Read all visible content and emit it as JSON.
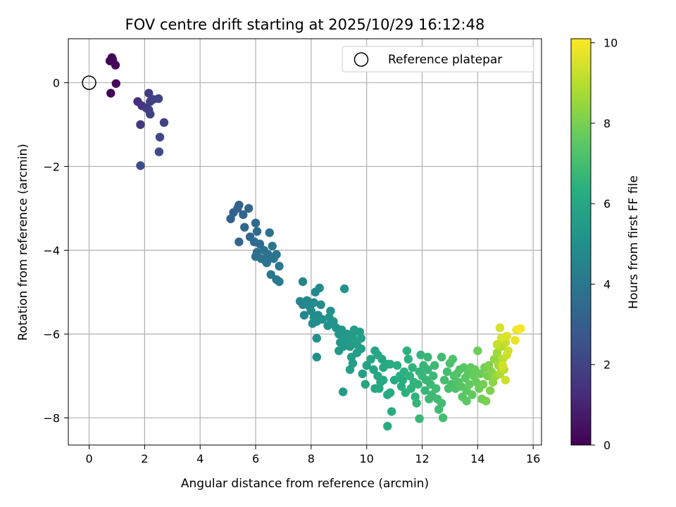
{
  "chart_data": {
    "type": "scatter",
    "title": "FOV centre drift starting at 2025/10/29 16:12:48",
    "xlabel": "Angular distance from reference (arcmin)",
    "ylabel": "Rotation from reference (arcmin)",
    "xlim": [
      -0.75,
      16.3
    ],
    "ylim": [
      -8.65,
      1.05
    ],
    "xticks": [
      0,
      2,
      4,
      6,
      8,
      10,
      12,
      14,
      16
    ],
    "yticks": [
      0,
      -2,
      -4,
      -6,
      -8
    ],
    "grid": true,
    "legend": {
      "position": "top-right",
      "entries": [
        "Reference platepar"
      ]
    },
    "reference_point": {
      "x": 0,
      "y": 0
    },
    "colorbar": {
      "label": "Hours from first FF file",
      "min": 0,
      "max": 10.1,
      "ticks": [
        0,
        2,
        4,
        6,
        8,
        10
      ],
      "colormap": "viridis"
    },
    "series": [
      {
        "name": "FOV centre drift",
        "points": [
          [
            0.75,
            0.52,
            0.1
          ],
          [
            0.82,
            0.6,
            0.15
          ],
          [
            0.85,
            0.55,
            0.2
          ],
          [
            0.95,
            0.42,
            0.25
          ],
          [
            0.78,
            -0.25,
            0.1
          ],
          [
            0.97,
            -0.02,
            0.2
          ],
          [
            1.75,
            -0.45,
            1.3
          ],
          [
            1.9,
            -0.55,
            1.5
          ],
          [
            1.85,
            -1.0,
            1.6
          ],
          [
            2.05,
            -0.6,
            1.7
          ],
          [
            2.15,
            -0.25,
            1.8
          ],
          [
            2.2,
            -0.45,
            1.9
          ],
          [
            2.15,
            -0.65,
            1.8
          ],
          [
            2.2,
            -0.75,
            1.9
          ],
          [
            2.3,
            -0.4,
            1.9
          ],
          [
            2.5,
            -0.38,
            2.0
          ],
          [
            2.7,
            -0.95,
            2.0
          ],
          [
            2.55,
            -1.3,
            2.2
          ],
          [
            2.52,
            -1.65,
            2.3
          ],
          [
            1.85,
            -1.98,
            2.4
          ],
          [
            5.1,
            -3.25,
            3.1
          ],
          [
            5.2,
            -3.1,
            3.1
          ],
          [
            5.35,
            -3.0,
            3.2
          ],
          [
            5.4,
            -2.92,
            3.2
          ],
          [
            5.55,
            -3.15,
            3.3
          ],
          [
            5.75,
            -3.0,
            3.3
          ],
          [
            5.6,
            -3.45,
            3.4
          ],
          [
            5.4,
            -3.8,
            3.3
          ],
          [
            5.8,
            -3.68,
            3.4
          ],
          [
            5.95,
            -3.8,
            3.5
          ],
          [
            6.05,
            -3.55,
            3.5
          ],
          [
            6.0,
            -3.35,
            3.5
          ],
          [
            6.15,
            -3.85,
            3.6
          ],
          [
            6.05,
            -4.05,
            3.6
          ],
          [
            6.0,
            -4.15,
            3.7
          ],
          [
            6.2,
            -4.2,
            3.7
          ],
          [
            6.35,
            -4.25,
            3.8
          ],
          [
            6.3,
            -4.0,
            3.8
          ],
          [
            6.45,
            -4.1,
            3.8
          ],
          [
            6.5,
            -3.58,
            3.8
          ],
          [
            6.6,
            -3.9,
            3.9
          ],
          [
            6.4,
            -4.3,
            3.9
          ],
          [
            6.65,
            -4.2,
            3.9
          ],
          [
            6.75,
            -4.1,
            3.9
          ],
          [
            6.55,
            -4.58,
            4.0
          ],
          [
            6.85,
            -4.38,
            4.0
          ],
          [
            6.75,
            -4.7,
            4.0
          ],
          [
            6.85,
            -4.75,
            4.1
          ],
          [
            7.7,
            -4.75,
            4.5
          ],
          [
            7.6,
            -5.22,
            4.6
          ],
          [
            7.7,
            -5.3,
            4.6
          ],
          [
            7.75,
            -5.55,
            4.6
          ],
          [
            7.85,
            -5.2,
            4.7
          ],
          [
            7.95,
            -5.35,
            4.7
          ],
          [
            8.0,
            -5.45,
            4.8
          ],
          [
            8.1,
            -5.25,
            4.8
          ],
          [
            8.15,
            -5.0,
            4.8
          ],
          [
            8.3,
            -4.9,
            4.8
          ],
          [
            8.35,
            -5.3,
            4.9
          ],
          [
            8.1,
            -5.6,
            4.9
          ],
          [
            8.2,
            -5.7,
            4.9
          ],
          [
            8.25,
            -5.55,
            4.9
          ],
          [
            8.4,
            -5.65,
            5.0
          ],
          [
            8.05,
            -5.75,
            4.9
          ],
          [
            8.2,
            -6.1,
            5.0
          ],
          [
            8.2,
            -6.55,
            5.0
          ],
          [
            8.7,
            -5.45,
            5.1
          ],
          [
            8.65,
            -5.6,
            5.1
          ],
          [
            8.6,
            -5.8,
            5.1
          ],
          [
            8.8,
            -5.7,
            5.2
          ],
          [
            8.9,
            -5.85,
            5.2
          ],
          [
            9.0,
            -6.0,
            5.3
          ],
          [
            9.05,
            -6.2,
            5.3
          ],
          [
            9.1,
            -5.9,
            5.3
          ],
          [
            9.2,
            -4.92,
            5.2
          ],
          [
            9.2,
            -6.1,
            5.4
          ],
          [
            9.3,
            -6.0,
            5.4
          ],
          [
            9.35,
            -6.2,
            5.4
          ],
          [
            9.4,
            -6.3,
            5.5
          ],
          [
            9.45,
            -6.1,
            5.5
          ],
          [
            9.5,
            -6.0,
            5.5
          ],
          [
            9.55,
            -5.9,
            5.5
          ],
          [
            9.6,
            -6.15,
            5.6
          ],
          [
            9.65,
            -6.25,
            5.6
          ],
          [
            9.75,
            -5.95,
            5.6
          ],
          [
            9.8,
            -6.1,
            5.6
          ],
          [
            9.8,
            -6.35,
            5.7
          ],
          [
            9.0,
            -6.4,
            5.4
          ],
          [
            9.15,
            -6.3,
            5.4
          ],
          [
            9.45,
            -6.55,
            5.6
          ],
          [
            9.5,
            -6.7,
            5.6
          ],
          [
            9.4,
            -6.85,
            5.6
          ],
          [
            9.15,
            -7.38,
            5.5
          ],
          [
            9.65,
            -6.45,
            5.6
          ],
          [
            10.0,
            -6.75,
            5.8
          ],
          [
            10.15,
            -6.6,
            5.9
          ],
          [
            10.3,
            -6.4,
            5.9
          ],
          [
            9.85,
            -6.95,
            5.8
          ],
          [
            9.95,
            -7.2,
            5.9
          ],
          [
            10.25,
            -6.85,
            5.9
          ],
          [
            10.4,
            -7.0,
            6.0
          ],
          [
            10.3,
            -7.3,
            6.0
          ],
          [
            10.5,
            -7.15,
            6.0
          ],
          [
            10.55,
            -6.6,
            6.0
          ],
          [
            10.4,
            -6.5,
            6.0
          ],
          [
            10.6,
            -6.8,
            6.1
          ],
          [
            10.75,
            -6.72,
            6.1
          ],
          [
            10.45,
            -7.3,
            6.1
          ],
          [
            10.6,
            -7.1,
            6.1
          ],
          [
            10.75,
            -7.45,
            6.2
          ],
          [
            10.85,
            -7.4,
            6.2
          ],
          [
            10.9,
            -7.85,
            6.2
          ],
          [
            10.75,
            -8.2,
            6.2
          ],
          [
            10.85,
            -6.72,
            6.2
          ],
          [
            11.0,
            -7.1,
            6.2
          ],
          [
            11.1,
            -6.75,
            6.3
          ],
          [
            11.2,
            -7.0,
            6.3
          ],
          [
            11.25,
            -7.25,
            6.3
          ],
          [
            11.3,
            -7.1,
            6.3
          ],
          [
            11.35,
            -6.9,
            6.4
          ],
          [
            11.4,
            -7.4,
            6.4
          ],
          [
            11.45,
            -6.4,
            6.4
          ],
          [
            11.5,
            -6.6,
            6.4
          ],
          [
            11.55,
            -7.0,
            6.5
          ],
          [
            11.6,
            -7.3,
            6.5
          ],
          [
            11.65,
            -6.8,
            6.5
          ],
          [
            11.7,
            -7.15,
            6.5
          ],
          [
            11.75,
            -7.5,
            6.5
          ],
          [
            11.8,
            -7.65,
            6.6
          ],
          [
            11.85,
            -7.2,
            6.6
          ],
          [
            11.9,
            -6.9,
            6.6
          ],
          [
            11.95,
            -6.5,
            6.6
          ],
          [
            12.0,
            -7.0,
            6.7
          ],
          [
            12.05,
            -6.75,
            6.7
          ],
          [
            12.1,
            -7.35,
            6.7
          ],
          [
            12.15,
            -7.1,
            6.7
          ],
          [
            12.2,
            -6.85,
            6.7
          ],
          [
            12.2,
            -6.55,
            6.7
          ],
          [
            12.25,
            -7.55,
            6.8
          ],
          [
            11.9,
            -8.02,
            6.7
          ],
          [
            12.3,
            -7.2,
            6.8
          ],
          [
            12.35,
            -7.45,
            6.8
          ],
          [
            12.4,
            -7.0,
            6.8
          ],
          [
            12.45,
            -6.75,
            6.8
          ],
          [
            12.5,
            -7.3,
            6.9
          ],
          [
            12.55,
            -7.55,
            6.9
          ],
          [
            12.6,
            -7.8,
            6.9
          ],
          [
            12.7,
            -7.65,
            6.9
          ],
          [
            12.7,
            -6.55,
            6.9
          ],
          [
            12.75,
            -8.0,
            7.0
          ],
          [
            12.8,
            -7.1,
            7.0
          ],
          [
            12.9,
            -6.9,
            7.0
          ],
          [
            12.95,
            -7.3,
            7.1
          ],
          [
            13.0,
            -6.7,
            7.1
          ],
          [
            13.05,
            -7.2,
            7.1
          ],
          [
            13.1,
            -6.6,
            7.2
          ],
          [
            13.15,
            -7.0,
            7.2
          ],
          [
            13.2,
            -7.3,
            7.2
          ],
          [
            13.25,
            -6.95,
            7.3
          ],
          [
            13.3,
            -7.15,
            7.3
          ],
          [
            13.35,
            -6.85,
            7.3
          ],
          [
            13.4,
            -7.25,
            7.4
          ],
          [
            13.45,
            -7.5,
            7.4
          ],
          [
            13.5,
            -6.8,
            7.4
          ],
          [
            13.55,
            -7.05,
            7.5
          ],
          [
            13.6,
            -7.35,
            7.5
          ],
          [
            13.6,
            -7.6,
            7.5
          ],
          [
            13.65,
            -6.95,
            7.5
          ],
          [
            13.7,
            -7.2,
            7.6
          ],
          [
            13.75,
            -6.8,
            7.6
          ],
          [
            13.8,
            -7.45,
            7.6
          ],
          [
            13.85,
            -7.0,
            7.7
          ],
          [
            13.9,
            -6.85,
            7.7
          ],
          [
            13.95,
            -7.15,
            7.7
          ],
          [
            14.0,
            -6.4,
            7.8
          ],
          [
            14.05,
            -7.3,
            7.8
          ],
          [
            14.1,
            -6.95,
            7.8
          ],
          [
            14.15,
            -7.55,
            7.9
          ],
          [
            14.2,
            -7.2,
            7.9
          ],
          [
            14.25,
            -6.8,
            7.9
          ],
          [
            14.3,
            -7.6,
            8.0
          ],
          [
            14.35,
            -7.0,
            8.0
          ],
          [
            14.4,
            -6.75,
            8.1
          ],
          [
            14.45,
            -7.35,
            8.1
          ],
          [
            14.5,
            -6.9,
            8.2
          ],
          [
            14.55,
            -7.15,
            8.3
          ],
          [
            14.6,
            -6.6,
            8.4
          ],
          [
            14.65,
            -7.0,
            8.5
          ],
          [
            14.7,
            -6.45,
            8.6
          ],
          [
            14.75,
            -6.75,
            8.7
          ],
          [
            14.8,
            -6.95,
            8.8
          ],
          [
            14.85,
            -6.3,
            8.9
          ],
          [
            14.9,
            -6.6,
            9.0
          ],
          [
            14.95,
            -6.85,
            9.1
          ],
          [
            15.0,
            -6.2,
            9.2
          ],
          [
            15.05,
            -6.5,
            9.3
          ],
          [
            15.1,
            -6.4,
            9.4
          ],
          [
            15.0,
            -7.1,
            9.3
          ],
          [
            14.8,
            -5.85,
            9.5
          ],
          [
            15.05,
            -6.05,
            9.6
          ],
          [
            14.85,
            -6.1,
            9.5
          ],
          [
            15.35,
            -6.15,
            9.8
          ],
          [
            15.4,
            -5.9,
            9.9
          ],
          [
            15.55,
            -5.87,
            10.0
          ],
          [
            14.7,
            -6.25,
            9.2
          ],
          [
            14.9,
            -6.75,
            9.4
          ]
        ]
      }
    ]
  }
}
